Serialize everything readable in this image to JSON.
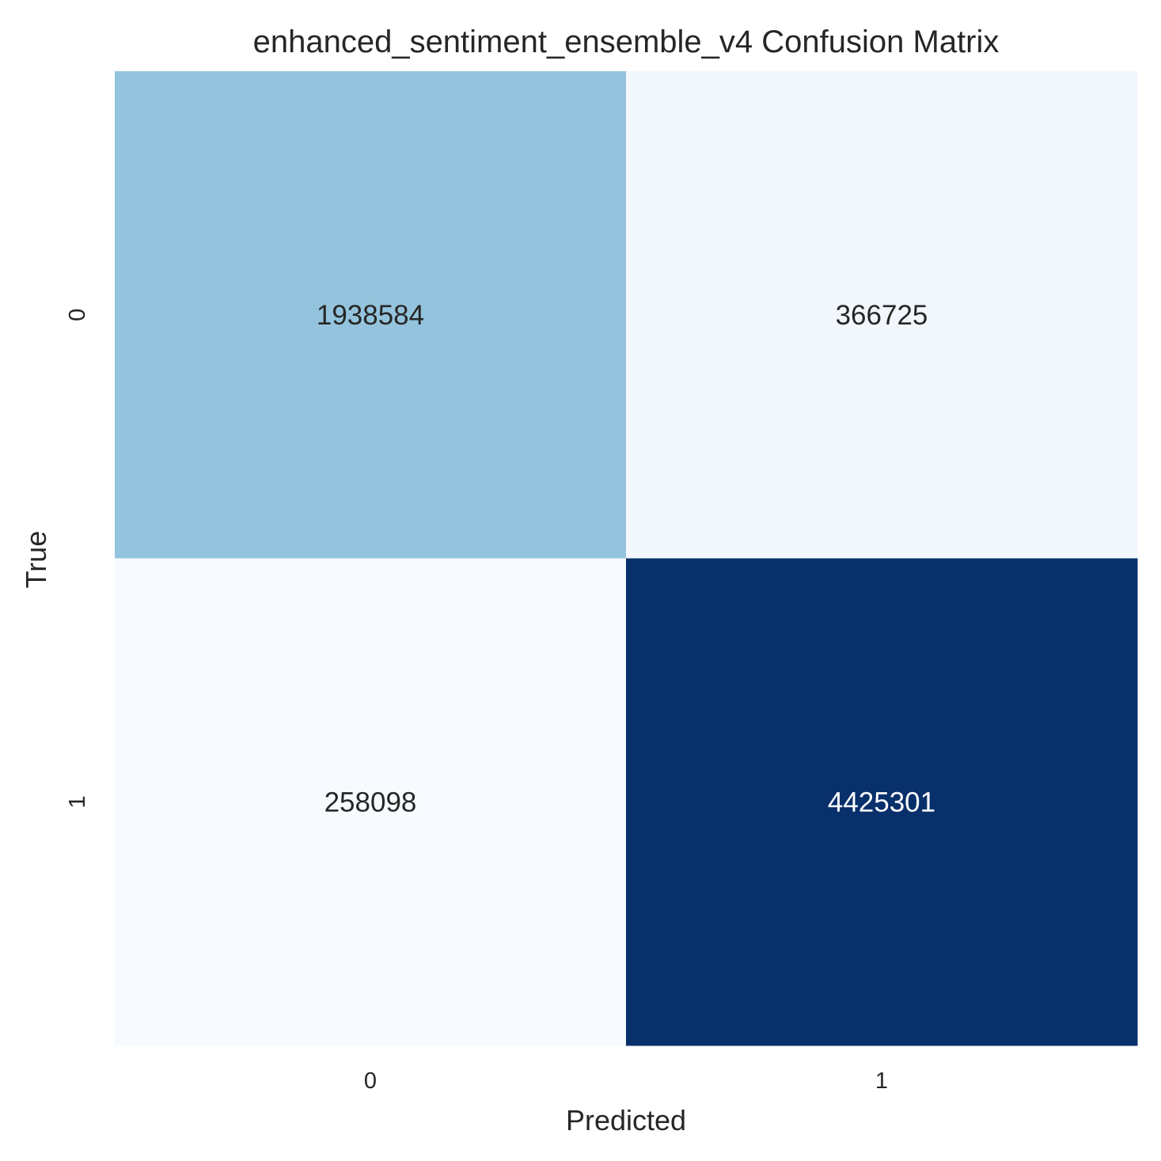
{
  "chart_data": {
    "type": "heatmap",
    "title": "enhanced_sentiment_ensemble_v4 Confusion Matrix",
    "xlabel": "Predicted",
    "ylabel": "True",
    "x_categories": [
      "0",
      "1"
    ],
    "y_categories": [
      "0",
      "1"
    ],
    "values": [
      [
        1938584,
        366725
      ],
      [
        258098,
        4425301
      ]
    ],
    "colormap": "Blues",
    "colorbar": false,
    "grid": false,
    "cell_colors": [
      [
        "#94c4dd",
        "#f2f7fd"
      ],
      [
        "#f7fbff",
        "#08306b"
      ]
    ],
    "cell_text_colors": [
      [
        "#262626",
        "#262626"
      ],
      [
        "#262626",
        "#ffffff"
      ]
    ]
  }
}
